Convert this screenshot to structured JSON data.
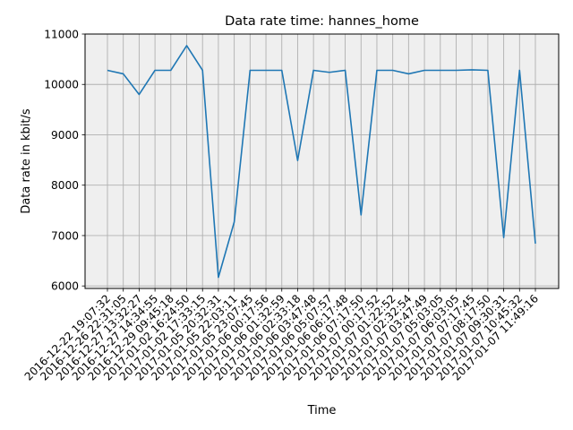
{
  "chart_data": {
    "type": "line",
    "title": "Data rate time: hannes_home",
    "xlabel": "Time",
    "ylabel": "Data rate in kbit/s",
    "ylim": [
      5950,
      11000
    ],
    "yticks": [
      6000,
      7000,
      8000,
      9000,
      10000,
      11000
    ],
    "grid": true,
    "legend": "none",
    "colors": {
      "line": "#1f77b4",
      "plot_background": "#efefef",
      "grid": "#b0b0b0",
      "axes": "#000000"
    },
    "x": [
      "2016-12-22 19:07:32",
      "2016-12-26 22:31:05",
      "2016-12-27 13:32:27",
      "2016-12-27 14:34:55",
      "2016-12-29 09:45:18",
      "2017-01-02 16:24:50",
      "2017-01-02 17:33:15",
      "2017-01-05 20:32:31",
      "2017-01-05 22:03:11",
      "2017-01-05 23:07:45",
      "2017-01-06 00:17:56",
      "2017-01-06 01:32:59",
      "2017-01-06 02:33:18",
      "2017-01-06 03:47:48",
      "2017-01-06 05:07:57",
      "2017-01-06 06:17:48",
      "2017-01-06 07:17:50",
      "2017-01-07 00:17:52",
      "2017-01-07 01:22:52",
      "2017-01-07 02:32:54",
      "2017-01-07 03:47:49",
      "2017-01-07 05:03:05",
      "2017-01-07 06:03:05",
      "2017-01-07 07:17:45",
      "2017-01-07 08:17:50",
      "2017-01-07 09:30:31",
      "2017-01-07 10:45:32",
      "2017-01-07 11:49:16"
    ],
    "series": [
      {
        "values": [
          10280,
          10210,
          9800,
          10280,
          10280,
          10770,
          10280,
          6170,
          7270,
          10280,
          10280,
          10280,
          8490,
          10280,
          10240,
          10280,
          7410,
          10280,
          10280,
          10210,
          10280,
          10280,
          10280,
          10290,
          10280,
          6960,
          10280,
          6840
        ]
      }
    ]
  }
}
